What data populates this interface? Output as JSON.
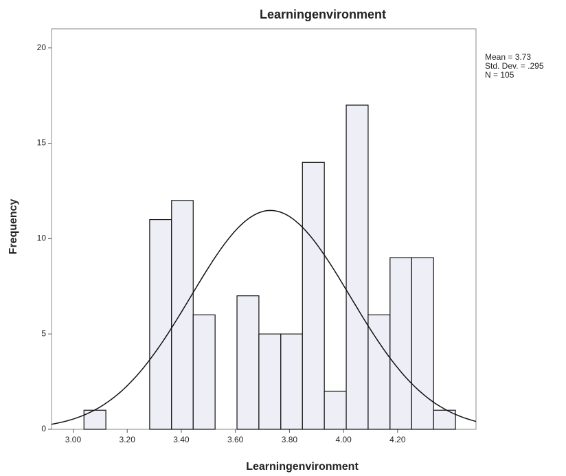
{
  "chart_data": {
    "type": "histogram",
    "title": "Learningenvironment",
    "x_label": "Learningenvironment",
    "y_label": "Frequency",
    "bins": [
      3.04,
      3.121,
      3.202,
      3.283,
      3.364,
      3.444,
      3.525,
      3.606,
      3.687,
      3.768,
      3.848,
      3.929,
      4.01,
      4.091,
      4.172,
      4.252,
      4.333,
      4.414
    ],
    "counts": [
      1,
      0,
      0,
      11,
      12,
      6,
      0,
      7,
      5,
      5,
      14,
      2,
      17,
      6,
      9,
      9,
      1
    ],
    "color": "#eeeef6",
    "xlim": [
      2.92,
      4.49
    ],
    "xticks": [
      {
        "value": 3.0,
        "label": "3.00"
      },
      {
        "value": 3.2,
        "label": "3.20"
      },
      {
        "value": 3.4,
        "label": "3.40"
      },
      {
        "value": 3.6,
        "label": "3.60"
      },
      {
        "value": 3.8,
        "label": "3.80"
      },
      {
        "value": 4.0,
        "label": "4.00"
      },
      {
        "value": 4.2,
        "label": "4.20"
      }
    ],
    "ylim": [
      0,
      21
    ],
    "yticks": [
      0,
      5,
      10,
      15,
      20
    ],
    "stats": {
      "mean": {
        "value": 3.73,
        "label": "Mean = 3.73"
      },
      "sd": {
        "value": 0.295,
        "label": "Std. Dev. = .295"
      },
      "n": {
        "value": 105,
        "label": "N = 105"
      }
    }
  }
}
